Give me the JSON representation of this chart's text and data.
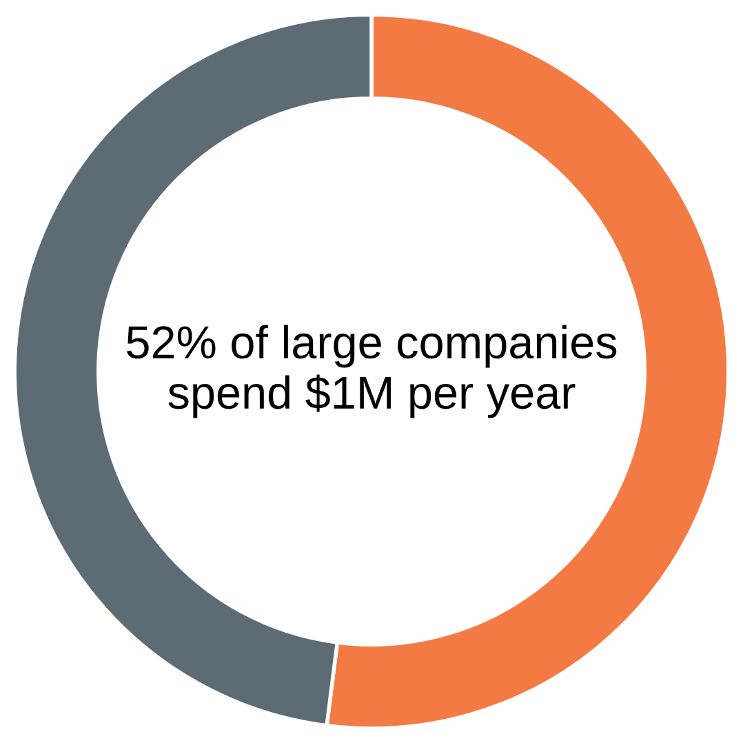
{
  "chart_data": {
    "type": "donut",
    "categories": [
      null,
      null
    ],
    "values": [
      52,
      48
    ],
    "colors": [
      "#f47a44",
      "#5d6b75"
    ],
    "annotations": [
      "52% of large companies spend $1M per year"
    ],
    "legend": false
  }
}
